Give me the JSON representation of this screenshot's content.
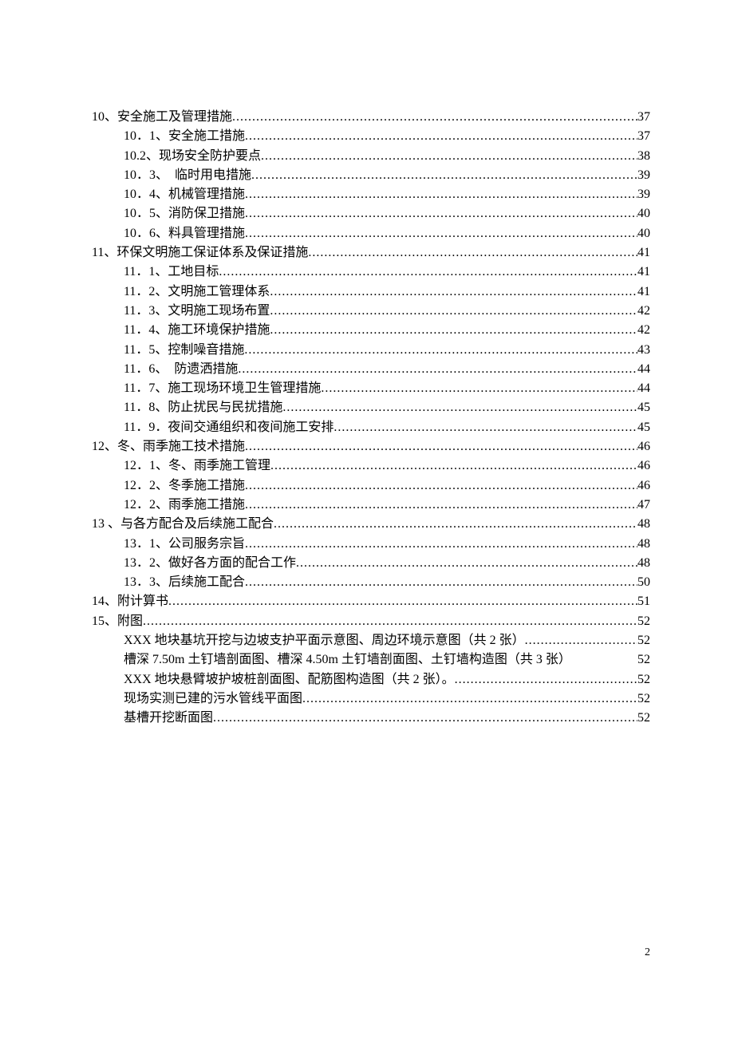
{
  "toc": {
    "entries": [
      {
        "level": 1,
        "label": "10、安全施工及管理措施",
        "page": "37"
      },
      {
        "level": 2,
        "label": "10．1、安全施工措施",
        "page": "37"
      },
      {
        "level": 2,
        "label": "10.2、现场安全防护要点",
        "page": "38"
      },
      {
        "level": 2,
        "label": "10．3、　临时用电措施",
        "page": "39"
      },
      {
        "level": 2,
        "label": "10．4、机械管理措施",
        "page": "39"
      },
      {
        "level": 2,
        "label": "10．5、消防保卫措施",
        "page": "40"
      },
      {
        "level": 2,
        "label": "10．6、料具管理措施",
        "page": "40"
      },
      {
        "level": 1,
        "label": "11、环保文明施工保证体系及保证措施",
        "page": "41"
      },
      {
        "level": 2,
        "label": "11．1、工地目标",
        "page": "41"
      },
      {
        "level": 2,
        "label": "11．2、文明施工管理体系",
        "page": "41"
      },
      {
        "level": 2,
        "label": "11．3、文明施工现场布置",
        "page": "42"
      },
      {
        "level": 2,
        "label": "11．4、施工环境保护措施",
        "page": "42"
      },
      {
        "level": 2,
        "label": "11．5、控制噪音措施",
        "page": "43"
      },
      {
        "level": 2,
        "label": "11．6、　防遗洒措施",
        "page": "44"
      },
      {
        "level": 2,
        "label": "11．7、施工现场环境卫生管理措施",
        "page": "44"
      },
      {
        "level": 2,
        "label": "11．8、防止扰民与民扰措施",
        "page": "45"
      },
      {
        "level": 2,
        "label": "11．9．夜间交通组织和夜间施工安排",
        "page": "45"
      },
      {
        "level": 1,
        "label": "12、冬、雨季施工技术措施",
        "page": "46"
      },
      {
        "level": 2,
        "label": "12．1、冬、雨季施工管理",
        "page": "46"
      },
      {
        "level": 2,
        "label": "12．2、冬季施工措施",
        "page": "46"
      },
      {
        "level": 2,
        "label": "12．2、雨季施工措施",
        "page": "47"
      },
      {
        "level": 1,
        "label": "13 、与各方配合及后续施工配合",
        "page": "48"
      },
      {
        "level": 2,
        "label": "13．1、公司服务宗旨",
        "page": "48"
      },
      {
        "level": 2,
        "label": "13．2、做好各方面的配合工作",
        "page": "48"
      },
      {
        "level": 2,
        "label": "13．3、后续施工配合",
        "page": "50"
      },
      {
        "level": 1,
        "label": "14、附计算书",
        "page": "51"
      },
      {
        "level": 1,
        "label": "15、附图",
        "page": "52"
      },
      {
        "level": 2,
        "label": "XXX 地块基坑开挖与边坡支护平面示意图、周边环境示意图（共 2 张）",
        "page": "52"
      },
      {
        "level": 2,
        "label": "槽深 7.50m 土钉墙剖面图、槽深 4.50m 土钉墙剖面图、土钉墙构造图（共 3 张）",
        "page": "52",
        "nodots": true
      },
      {
        "level": 2,
        "label": "XXX 地块悬臂坡护坡桩剖面图、配筋图构造图（共 2 张）。",
        "page": "52"
      },
      {
        "level": 2,
        "label": "现场实测已建的污水管线平面图",
        "page": "52"
      },
      {
        "level": 2,
        "label": "基槽开挖断面图",
        "page": "52"
      }
    ]
  },
  "pageNumber": "2",
  "styles": {
    "fontSize": 16,
    "lineHeight": 24.3,
    "textColor": "#000000",
    "backgroundColor": "#ffffff",
    "level2Indent": 40
  }
}
